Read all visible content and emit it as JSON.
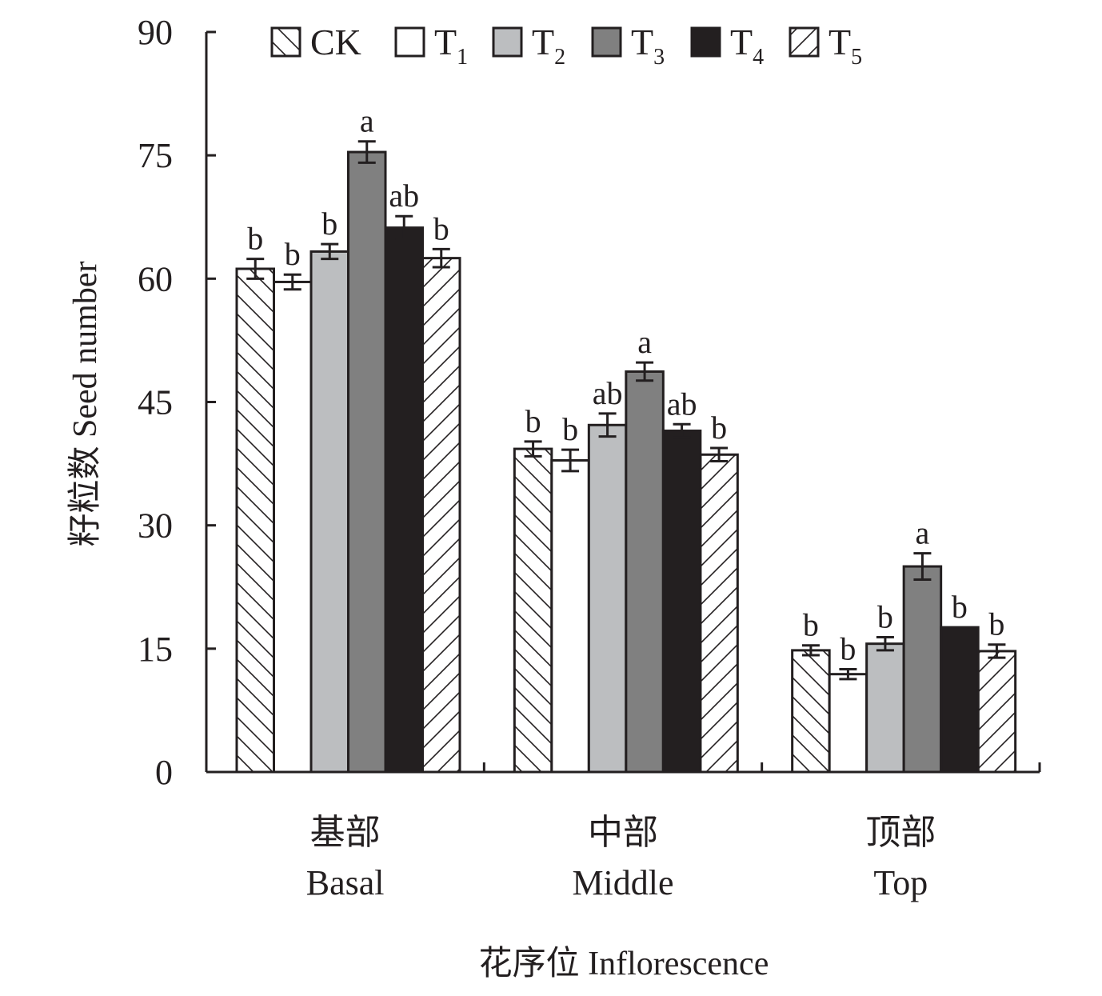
{
  "chart_data": {
    "type": "bar",
    "title": "",
    "ylabel": "籽粒数 Seed number",
    "xlabel": "花序位 Inflorescence",
    "ylim": [
      0,
      90
    ],
    "yticks": [
      0,
      15,
      30,
      45,
      60,
      75,
      90
    ],
    "ytick_labels": [
      "0",
      "15",
      "30",
      "45",
      "60",
      "75",
      "90"
    ],
    "legend_position": "top",
    "grid": false,
    "categories": [
      {
        "zh": "基部",
        "en": "Basal"
      },
      {
        "zh": "中部",
        "en": "Middle"
      },
      {
        "zh": "顶部",
        "en": "Top"
      }
    ],
    "series": [
      {
        "name": "CK",
        "sub": "",
        "pattern": "hatch-back",
        "color": "#ffffff",
        "values": [
          61.2,
          39.3,
          14.8
        ],
        "errors": [
          1.2,
          0.9,
          0.6
        ],
        "labels": [
          "b",
          "b",
          "b"
        ]
      },
      {
        "name": "T",
        "sub": "1",
        "pattern": "solid",
        "color": "#ffffff",
        "values": [
          59.6,
          37.9,
          11.9
        ],
        "errors": [
          0.9,
          1.3,
          0.6
        ],
        "labels": [
          "b",
          "b",
          "b"
        ]
      },
      {
        "name": "T",
        "sub": "2",
        "pattern": "solid",
        "color": "#bcbec0",
        "values": [
          63.3,
          42.2,
          15.6
        ],
        "errors": [
          0.9,
          1.4,
          0.8
        ],
        "labels": [
          "b",
          "ab",
          "b"
        ]
      },
      {
        "name": "T",
        "sub": "3",
        "pattern": "solid",
        "color": "#808080",
        "values": [
          75.4,
          48.7,
          25.0
        ],
        "errors": [
          1.3,
          1.1,
          1.6
        ],
        "labels": [
          "a",
          "a",
          "a"
        ]
      },
      {
        "name": "T",
        "sub": "4",
        "pattern": "solid",
        "color": "#231f20",
        "values": [
          66.2,
          41.5,
          17.6
        ],
        "errors": [
          1.4,
          0.8,
          0.0
        ],
        "labels": [
          "ab",
          "ab",
          "b"
        ]
      },
      {
        "name": "T",
        "sub": "5",
        "pattern": "hatch-fwd",
        "color": "#ffffff",
        "values": [
          62.5,
          38.6,
          14.7
        ],
        "errors": [
          1.1,
          0.8,
          0.8
        ],
        "labels": [
          "b",
          "b",
          "b"
        ]
      }
    ]
  }
}
